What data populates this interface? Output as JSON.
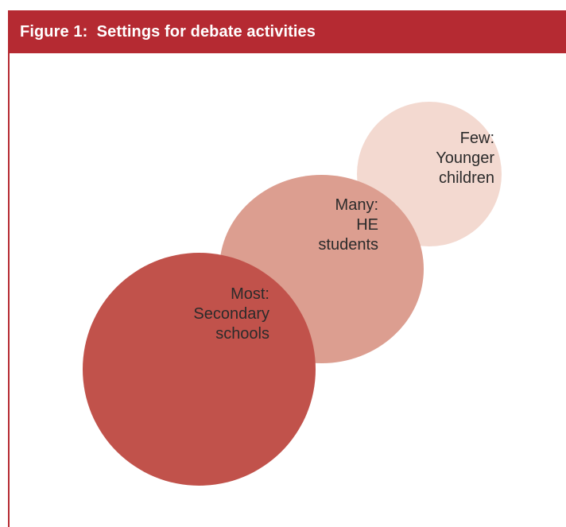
{
  "figure": {
    "title": "Figure 1:  Settings for debate activities"
  },
  "bubbles": [
    {
      "lines": [
        "Few:",
        "Younger",
        "children"
      ],
      "color": "#f3d9d0"
    },
    {
      "lines": [
        "Many:",
        "HE",
        "students"
      ],
      "color": "#dc9e90"
    },
    {
      "lines": [
        "Most:",
        "Secondary",
        "schools"
      ],
      "color": "#c1524b"
    }
  ],
  "colors": {
    "header": "#b52a32",
    "header_text": "#ffffff"
  }
}
